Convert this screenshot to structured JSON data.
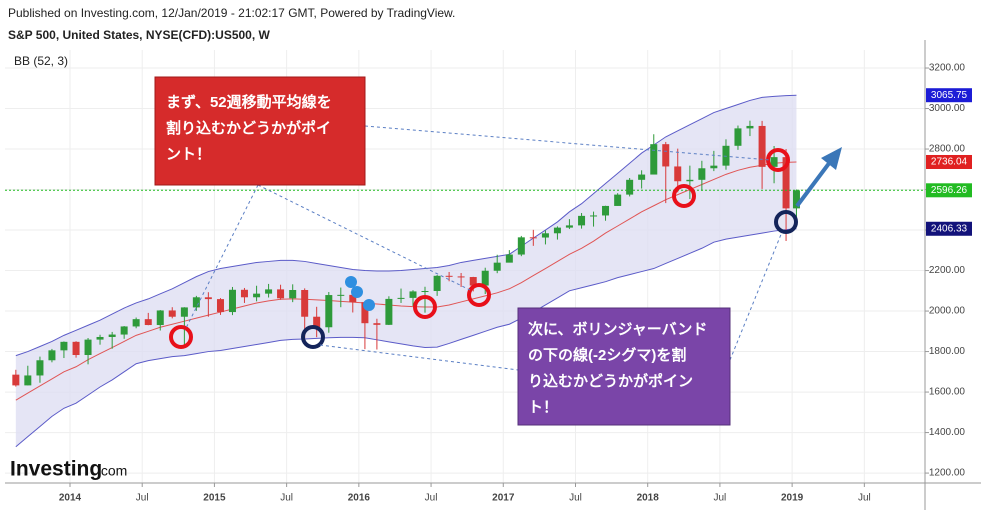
{
  "header": {
    "published": "Published on Investing.com, 12/Jan/2019 - 21:02:17 GMT, Powered by TradingView.",
    "symbol": "S&P 500, United States, NYSE(CFD):US500, W",
    "indicator": "BB (52, 3)"
  },
  "annotations": {
    "first": [
      "まず、52週移動平均線を",
      "割り込むかどうかがポイ",
      "ント！"
    ],
    "second": [
      "次に、ボリンジャーバンド",
      "の下の線(-2シグマ)を割",
      "り込むかどうかがポイン",
      "ト！"
    ]
  },
  "logo": {
    "brand": "Investing",
    "domain": ".com"
  },
  "chart_data": {
    "type": "candlestick",
    "xlim": [
      2013.55,
      2019.92
    ],
    "xticks": [
      {
        "value": 2014,
        "label": "2014"
      },
      {
        "value": 2014.5,
        "label": "Jul"
      },
      {
        "value": 2015,
        "label": "2015"
      },
      {
        "value": 2015.5,
        "label": "Jul"
      },
      {
        "value": 2016,
        "label": "2016"
      },
      {
        "value": 2016.5,
        "label": "Jul"
      },
      {
        "value": 2017,
        "label": "2017"
      },
      {
        "value": 2017.5,
        "label": "Jul"
      },
      {
        "value": 2018,
        "label": "2018"
      },
      {
        "value": 2018.5,
        "label": "Jul"
      },
      {
        "value": 2019,
        "label": "2019"
      },
      {
        "value": 2019.5,
        "label": "Jul"
      }
    ],
    "ylim": [
      1151,
      3289
    ],
    "yticks": [
      {
        "value": 1200,
        "label": "1200.00"
      },
      {
        "value": 1400,
        "label": "1400.00"
      },
      {
        "value": 1600,
        "label": "1600.00"
      },
      {
        "value": 1800,
        "label": "1800.00"
      },
      {
        "value": 2000,
        "label": "2000.00"
      },
      {
        "value": 2200,
        "label": "2200.00"
      },
      {
        "value": 2400,
        "label": "2400.00"
      },
      {
        "value": 2600,
        "label": "2600.00"
      },
      {
        "value": 2800,
        "label": "2800.00"
      },
      {
        "value": 3000,
        "label": "3000.00"
      },
      {
        "value": 3200,
        "label": "3200.00"
      }
    ],
    "up_color": "#2e9a3a",
    "down_color": "#d83a3a",
    "band_color": "#5b5bc8",
    "band_fill": "#dcdcf2",
    "mid_color": "#e05555",
    "x": [
      2013.625,
      2013.708,
      2013.792,
      2013.875,
      2013.958,
      2014.042,
      2014.125,
      2014.208,
      2014.292,
      2014.375,
      2014.458,
      2014.542,
      2014.625,
      2014.708,
      2014.792,
      2014.875,
      2014.958,
      2015.042,
      2015.125,
      2015.208,
      2015.292,
      2015.375,
      2015.458,
      2015.542,
      2015.625,
      2015.708,
      2015.792,
      2015.875,
      2015.958,
      2016.042,
      2016.125,
      2016.208,
      2016.292,
      2016.375,
      2016.458,
      2016.542,
      2016.625,
      2016.708,
      2016.792,
      2016.875,
      2016.958,
      2017.042,
      2017.125,
      2017.208,
      2017.292,
      2017.375,
      2017.458,
      2017.542,
      2017.625,
      2017.708,
      2017.792,
      2017.875,
      2017.958,
      2018.042,
      2018.125,
      2018.208,
      2018.292,
      2018.375,
      2018.458,
      2018.542,
      2018.625,
      2018.708,
      2018.792,
      2018.875,
      2018.958,
      2019.03
    ],
    "open": [
      1686,
      1633,
      1682,
      1757,
      1806,
      1848,
      1783,
      1859,
      1872,
      1884,
      1924,
      1960,
      1931,
      2003,
      1972,
      2018,
      2068,
      2059,
      1995,
      2105,
      2068,
      2086,
      2107,
      2063,
      2104,
      1972,
      1920,
      2079,
      2080,
      2044,
      1940,
      1932,
      2060,
      2065,
      2097,
      2099,
      2174,
      2171,
      2168,
      2126,
      2199,
      2239,
      2279,
      2364,
      2363,
      2384,
      2412,
      2423,
      2470,
      2472,
      2519,
      2575,
      2648,
      2674,
      2824,
      2714,
      2641,
      2648,
      2705,
      2718,
      2816,
      2902,
      2914,
      2712,
      2760,
      2507
    ],
    "high": [
      1710,
      1730,
      1775,
      1813,
      1850,
      1851,
      1867,
      1883,
      1897,
      1926,
      1968,
      1991,
      2005,
      2019,
      2019,
      2075,
      2093,
      2064,
      2119,
      2114,
      2125,
      2134,
      2130,
      2132,
      2112,
      2021,
      2094,
      2116,
      2104,
      2038,
      1962,
      2073,
      2111,
      2103,
      2120,
      2178,
      2193,
      2188,
      2169,
      2214,
      2278,
      2301,
      2371,
      2401,
      2398,
      2418,
      2454,
      2484,
      2491,
      2520,
      2582,
      2657,
      2695,
      2873,
      2835,
      2802,
      2718,
      2742,
      2791,
      2848,
      2916,
      2940,
      2939,
      2815,
      2800,
      2600
    ],
    "low": [
      1627,
      1633,
      1646,
      1747,
      1768,
      1770,
      1737,
      1834,
      1814,
      1863,
      1915,
      1930,
      1904,
      1964,
      1821,
      2001,
      1972,
      1981,
      1980,
      2040,
      2048,
      2067,
      2056,
      2044,
      1867,
      1871,
      1893,
      2019,
      1993,
      1812,
      1810,
      1931,
      2040,
      2025,
      1992,
      2075,
      2147,
      2119,
      2097,
      2084,
      2187,
      2245,
      2271,
      2322,
      2329,
      2353,
      2405,
      2407,
      2417,
      2446,
      2520,
      2566,
      2605,
      2682,
      2533,
      2586,
      2553,
      2594,
      2691,
      2698,
      2796,
      2864,
      2603,
      2631,
      2346,
      2443
    ],
    "close": [
      1633,
      1682,
      1757,
      1806,
      1848,
      1783,
      1859,
      1872,
      1884,
      1924,
      1960,
      1931,
      2003,
      1972,
      2018,
      2068,
      2059,
      1995,
      2105,
      2068,
      2086,
      2107,
      2063,
      2104,
      1972,
      1920,
      2079,
      2080,
      2044,
      1940,
      1932,
      2060,
      2065,
      2097,
      2099,
      2174,
      2171,
      2168,
      2126,
      2199,
      2239,
      2279,
      2364,
      2363,
      2384,
      2412,
      2423,
      2470,
      2472,
      2519,
      2575,
      2648,
      2674,
      2824,
      2714,
      2641,
      2648,
      2705,
      2718,
      2816,
      2902,
      2914,
      2712,
      2760,
      2507,
      2596
    ],
    "bands": {
      "upper": [
        1780,
        1800,
        1825,
        1850,
        1880,
        1905,
        1930,
        1955,
        1985,
        2015,
        2040,
        2060,
        2085,
        2110,
        2140,
        2170,
        2195,
        2210,
        2220,
        2230,
        2240,
        2245,
        2250,
        2250,
        2245,
        2235,
        2225,
        2215,
        2205,
        2200,
        2198,
        2198,
        2200,
        2205,
        2210,
        2215,
        2225,
        2240,
        2250,
        2260,
        2270,
        2280,
        2320,
        2360,
        2400,
        2440,
        2490,
        2530,
        2580,
        2630,
        2680,
        2730,
        2780,
        2820,
        2860,
        2890,
        2920,
        2950,
        2980,
        3000,
        3020,
        3040,
        3055,
        3060,
        3064,
        3065.75
      ],
      "middle": [
        1560,
        1595,
        1630,
        1665,
        1700,
        1725,
        1760,
        1790,
        1820,
        1850,
        1880,
        1900,
        1920,
        1935,
        1950,
        1965,
        1980,
        1995,
        2010,
        2025,
        2040,
        2050,
        2058,
        2060,
        2058,
        2055,
        2052,
        2048,
        2044,
        2040,
        2035,
        2030,
        2025,
        2022,
        2020,
        2020,
        2030,
        2045,
        2060,
        2075,
        2090,
        2110,
        2140,
        2175,
        2210,
        2245,
        2280,
        2310,
        2345,
        2385,
        2420,
        2455,
        2490,
        2520,
        2550,
        2575,
        2600,
        2625,
        2650,
        2675,
        2695,
        2710,
        2720,
        2730,
        2734,
        2736.04
      ],
      "lower": [
        1330,
        1380,
        1430,
        1480,
        1520,
        1545,
        1585,
        1625,
        1660,
        1700,
        1740,
        1755,
        1765,
        1775,
        1780,
        1790,
        1800,
        1805,
        1815,
        1825,
        1835,
        1845,
        1855,
        1860,
        1862,
        1865,
        1868,
        1870,
        1870,
        1868,
        1858,
        1848,
        1838,
        1828,
        1820,
        1822,
        1840,
        1860,
        1880,
        1900,
        1920,
        1935,
        1965,
        1995,
        2030,
        2065,
        2100,
        2115,
        2130,
        2145,
        2165,
        2180,
        2195,
        2210,
        2235,
        2260,
        2285,
        2310,
        2340,
        2355,
        2365,
        2375,
        2385,
        2395,
        2402,
        2406.33
      ]
    },
    "price_labels": [
      {
        "value": 3065.75,
        "color": "#1c1cd6"
      },
      {
        "value": 2736.04,
        "color": "#e02020"
      },
      {
        "value": 2596.26,
        "color": "#22bb22",
        "line": true
      },
      {
        "value": 2406.33,
        "color": "#12127a"
      }
    ]
  }
}
